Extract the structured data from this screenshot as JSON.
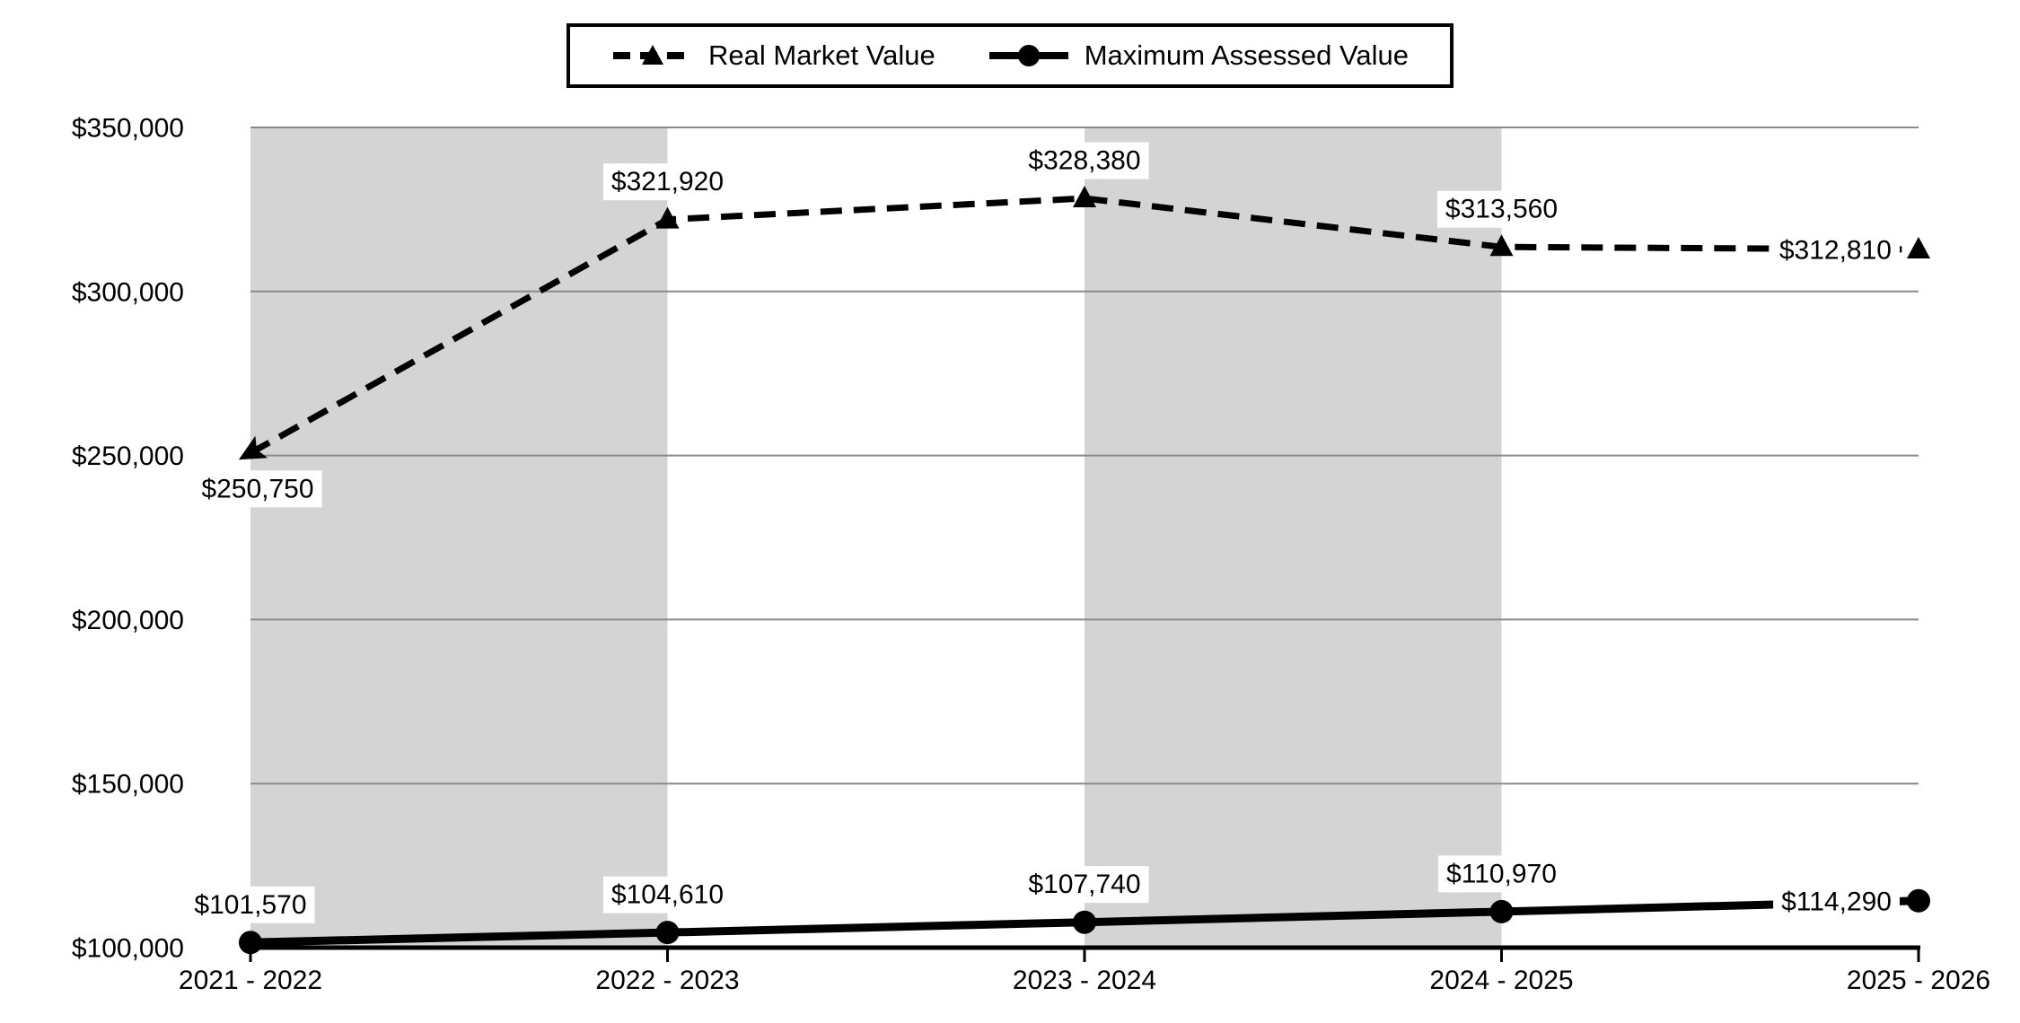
{
  "legend": {
    "items": [
      {
        "label": "Real Market Value"
      },
      {
        "label": "Maximum Assessed Value"
      }
    ]
  },
  "chart_data": {
    "type": "line",
    "title": "",
    "xlabel": "",
    "ylabel": "",
    "categories": [
      "2021 - 2022",
      "2022 - 2023",
      "2023 - 2024",
      "2024 - 2025",
      "2025 - 2026"
    ],
    "series": [
      {
        "name": "Real Market Value",
        "values": [
          250750,
          321920,
          328380,
          313560,
          312810
        ],
        "value_labels": [
          "$250,750",
          "$321,920",
          "$328,380",
          "$313,560",
          "$312,810"
        ],
        "label_positions": [
          "below",
          "above",
          "above",
          "above",
          "left"
        ],
        "line_style": "dashed",
        "marker": "triangle",
        "first_point_marker": "arrowhead"
      },
      {
        "name": "Maximum Assessed Value",
        "values": [
          101570,
          104610,
          107740,
          110970,
          114290
        ],
        "value_labels": [
          "$101,570",
          "$104,610",
          "$107,740",
          "$110,970",
          "$114,290"
        ],
        "label_positions": [
          "above",
          "above",
          "above",
          "above",
          "left"
        ],
        "line_style": "solid",
        "marker": "circle",
        "first_point_marker": "circle"
      }
    ],
    "ylim": [
      100000,
      350000
    ],
    "ytick_interval": 50000,
    "yticks": [
      {
        "value": 100000,
        "label": "$100,000"
      },
      {
        "value": 150000,
        "label": "$150,000"
      },
      {
        "value": 200000,
        "label": "$200,000"
      },
      {
        "value": 250000,
        "label": "$250,000"
      },
      {
        "value": 300000,
        "label": "$300,000"
      },
      {
        "value": 350000,
        "label": "$350,000"
      }
    ],
    "grid": "horizontal",
    "legend_position": "top-center",
    "shaded_intervals": [
      [
        0,
        1
      ],
      [
        2,
        3
      ]
    ],
    "colors": {
      "series": "#000000",
      "plot_band": "#d4d4d4",
      "gridline": "#8a8a8a",
      "axis": "#000000",
      "text": "#000000",
      "background": "#ffffff",
      "data_label_background": "#ffffff"
    }
  }
}
